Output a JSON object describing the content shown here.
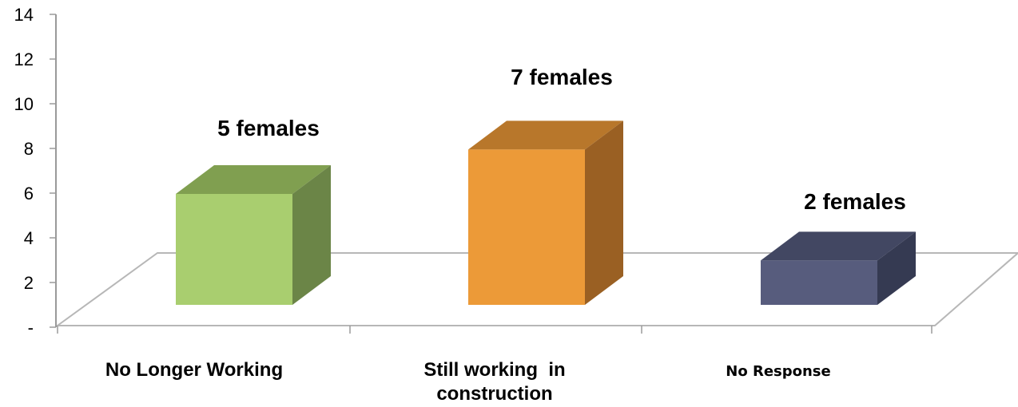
{
  "chart_data": {
    "type": "bar",
    "style": "3d-column",
    "categories": [
      "No Longer Working",
      "Still working  in construction",
      "No Response"
    ],
    "category_label_lines": [
      [
        "No Longer Working"
      ],
      [
        "Still working  in",
        "construction"
      ],
      [
        "No Response"
      ]
    ],
    "values": [
      5,
      7,
      2
    ],
    "data_labels": [
      "5 females",
      "7 females",
      "2 females"
    ],
    "bar_colors": [
      {
        "front": "#a9ce6f",
        "top": "#809f50",
        "side": "#6b8547"
      },
      {
        "front": "#ec9a38",
        "top": "#b8772b",
        "side": "#9a6023"
      },
      {
        "front": "#575c7d",
        "top": "#424762",
        "side": "#353a52"
      }
    ],
    "ylim": [
      0,
      14
    ],
    "y_ticks": [
      0,
      2,
      4,
      6,
      8,
      10,
      12,
      14
    ],
    "y_tick_labels": [
      "-",
      "2",
      "4",
      "6",
      "8",
      "10",
      "12",
      "14"
    ],
    "title": "",
    "xlabel": "",
    "ylabel": "",
    "grid": false,
    "legend": "none"
  }
}
